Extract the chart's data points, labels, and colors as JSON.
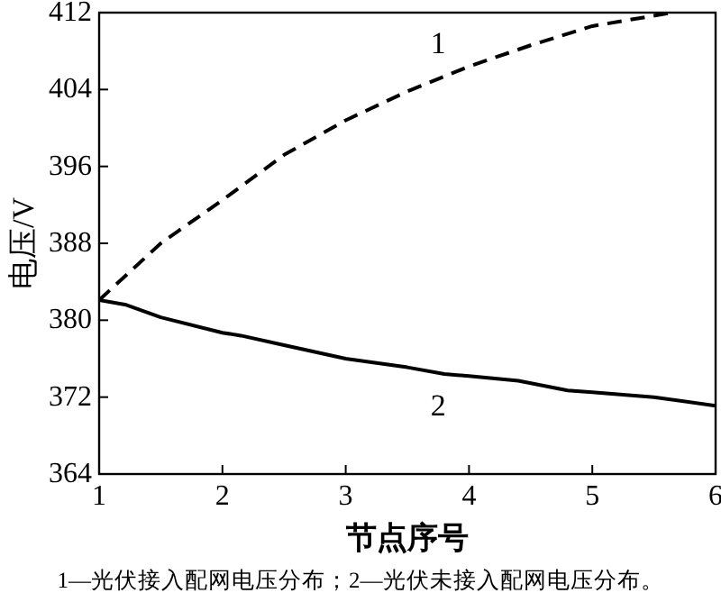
{
  "chart_data": {
    "type": "line",
    "xlabel": "节点序号",
    "ylabel": "电压/V",
    "xlim": [
      1,
      6
    ],
    "xticks": [
      1,
      2,
      3,
      4,
      5,
      6
    ],
    "ylim": [
      364,
      412
    ],
    "yticks": [
      364,
      372,
      380,
      388,
      396,
      404,
      412
    ],
    "grid": false,
    "marker": "none",
    "series": [
      {
        "color": "#000000",
        "line_style": "dashed",
        "x": [
          1,
          1.5,
          2,
          2.5,
          3,
          3.5,
          4,
          4.5,
          5,
          5.65
        ],
        "values": [
          382.1,
          388,
          392.5,
          397.2,
          400.8,
          403.8,
          406.4,
          408.6,
          410.6,
          412
        ]
      },
      {
        "color": "#000000",
        "line_style": "solid",
        "x": [
          1,
          1.22,
          1.5,
          2,
          2.15,
          2.5,
          3,
          3.5,
          3.8,
          4,
          4.4,
          4.8,
          5,
          5.5,
          6
        ],
        "values": [
          382.1,
          381.6,
          380.3,
          378.7,
          378.4,
          377.4,
          376,
          375.1,
          374.4,
          374.2,
          373.7,
          372.7,
          372.5,
          372,
          371.1
        ]
      }
    ],
    "annotations": [
      "1",
      "2",
      "1—光伏接入配网电压分布；2—光伏未接入配网电压分布。"
    ]
  }
}
